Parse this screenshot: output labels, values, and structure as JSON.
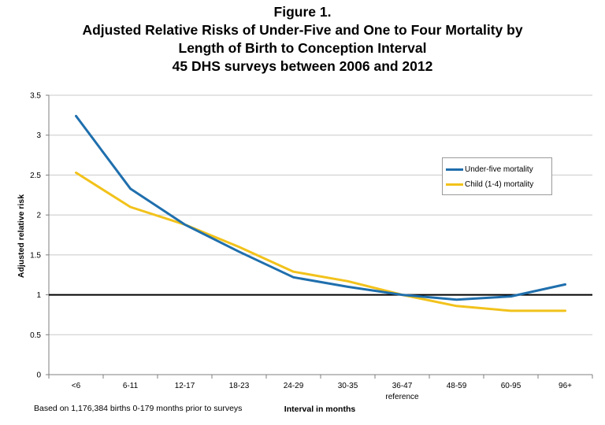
{
  "figure": {
    "title_lines": [
      "Figure 1.",
      "Adjusted Relative Risks of Under-Five and One to Four Mortality by",
      "Length of Birth to Conception Interval",
      "45 DHS surveys between 2006 and 2012"
    ],
    "footnote": "Based on  1,176,384 births 0-179 months prior to surveys"
  },
  "chart_data": {
    "type": "line",
    "title": "Adjusted Relative Risks of Under-Five and One to Four Mortality by Length of Birth to Conception Interval 45 DHS surveys between 2006 and 2012",
    "xlabel": "Interval in months",
    "ylabel": "Adjusted relative risk",
    "categories": [
      "<6",
      "6-11",
      "12-17",
      "18-23",
      "24-29",
      "30-35",
      "36-47",
      "48-59",
      "60-95",
      "96+"
    ],
    "category_sublabels": [
      "",
      "",
      "",
      "",
      "",
      "",
      "reference",
      "",
      "",
      ""
    ],
    "ylim": [
      0,
      3.5
    ],
    "yticks": [
      0,
      0.5,
      1,
      1.5,
      2,
      2.5,
      3,
      3.5
    ],
    "ytick_labels": [
      "0",
      "0.5",
      "1",
      "1.5",
      "2",
      "2.5",
      "3",
      "3.5"
    ],
    "reference_line": 1,
    "grid": true,
    "legend_position": "right",
    "series": [
      {
        "name": "Under-five mortality",
        "color": "#1f6fad",
        "values": [
          3.24,
          2.33,
          1.88,
          1.54,
          1.22,
          1.1,
          1.0,
          0.94,
          0.98,
          1.13
        ]
      },
      {
        "name": "Child (1-4) mortality",
        "color": "#f2c21b",
        "values": [
          2.53,
          2.1,
          1.88,
          1.6,
          1.29,
          1.17,
          1.0,
          0.86,
          0.8,
          0.8
        ]
      }
    ]
  }
}
